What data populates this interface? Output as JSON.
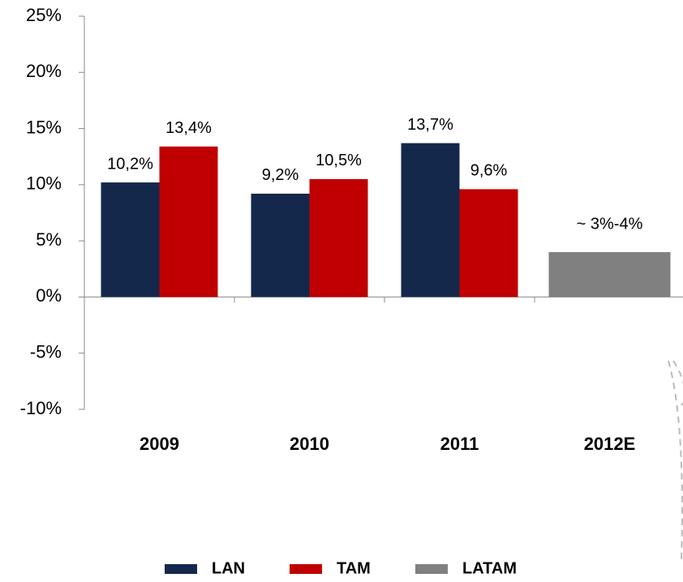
{
  "chart_data": {
    "type": "bar",
    "categories": [
      "2009",
      "2010",
      "2011",
      "2012E"
    ],
    "series": [
      {
        "name": "LAN",
        "color": "#14284b",
        "values": [
          10.2,
          9.2,
          13.7,
          null
        ],
        "value_labels": [
          "10,2%",
          "9,2%",
          "13,7%",
          null
        ]
      },
      {
        "name": "TAM",
        "color": "#c00000",
        "values": [
          13.4,
          10.5,
          9.6,
          null
        ],
        "value_labels": [
          "13,4%",
          "10,5%",
          "9,6%",
          null
        ]
      },
      {
        "name": "LATAM",
        "color": "#808080",
        "values": [
          null,
          null,
          null,
          4
        ],
        "value_labels": [
          null,
          null,
          null,
          "~ 3%-4%"
        ]
      }
    ],
    "ylim": [
      -10,
      25
    ],
    "yticks": [
      {
        "value": -10,
        "label": "-10%"
      },
      {
        "value": -5,
        "label": "-5%"
      },
      {
        "value": 0,
        "label": "0%"
      },
      {
        "value": 5,
        "label": "5%"
      },
      {
        "value": 10,
        "label": "10%"
      },
      {
        "value": 15,
        "label": "15%"
      },
      {
        "value": 20,
        "label": "20%"
      },
      {
        "value": 25,
        "label": "25%"
      }
    ],
    "legend": "bottom"
  }
}
